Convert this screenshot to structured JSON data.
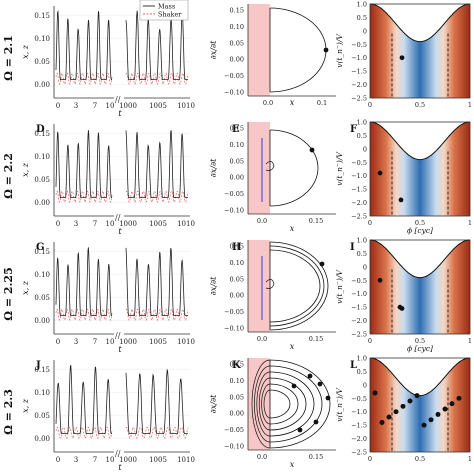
{
  "rows": [
    {
      "omega_label": "Ω = 2.1",
      "letters": [
        "",
        "",
        ""
      ]
    },
    {
      "omega_label": "Ω = 2.2",
      "letters": [
        "D",
        "E",
        "F"
      ]
    },
    {
      "omega_label": "Ω = 2.25",
      "letters": [
        "G",
        "H",
        "I"
      ]
    },
    {
      "omega_label": "Ω = 2.3",
      "letters": [
        "J",
        "K",
        "L"
      ]
    }
  ],
  "time_panel": {
    "ylabel": "x, z",
    "xlabel": "t",
    "y_ticks": [
      "0.15",
      "0.10",
      "0.05",
      "0.00"
    ],
    "x_ticks_left": [
      "0",
      "3",
      "7",
      "10"
    ],
    "x_ticks_right": [
      "1000",
      "1005",
      "1010"
    ],
    "legend": [
      "Mass",
      "Shaker"
    ],
    "colors": {
      "mass": "#222222",
      "shaker": "#e06060"
    }
  },
  "phase_panel": {
    "ylabel": "∂x/∂t",
    "xlabel": "x",
    "y_ticks_top": [
      "0.15",
      "0.10",
      "0.05",
      "0.00",
      "−0.05",
      "−0.10"
    ],
    "x_ticks_row1": [
      "0.0",
      "0.1"
    ],
    "x_ticks_other": [
      "0.0",
      "0.15"
    ],
    "colors": {
      "shade": "#f7c6c6",
      "orbit": "#111111",
      "blue": "#3a3ad0"
    }
  },
  "potential_panel": {
    "ylabel": "v(t_n⁻)/V",
    "xlabel": "ϕ [cyc]",
    "y_ticks": [
      "1.0",
      "0.5",
      "0",
      "−0.5",
      "−1.0",
      "−1.5",
      "−2.0",
      "−2.5"
    ],
    "x_ticks": [
      "0",
      "0.5",
      "1"
    ]
  },
  "chart_data": [
    {
      "type": "line",
      "title": "",
      "xlabel": "t",
      "ylabel": "x, z",
      "ylim": [
        -0.03,
        0.17
      ],
      "series": [
        {
          "name": "Mass"
        },
        {
          "name": "Shaker"
        }
      ],
      "legend_position": "top-right"
    },
    {
      "type": "scatter",
      "xlabel": "ϕ [cyc]",
      "ylabel": "v(t_n⁻)/V",
      "ylim": [
        -2.5,
        1.0
      ],
      "xlim": [
        0,
        1
      ]
    }
  ]
}
